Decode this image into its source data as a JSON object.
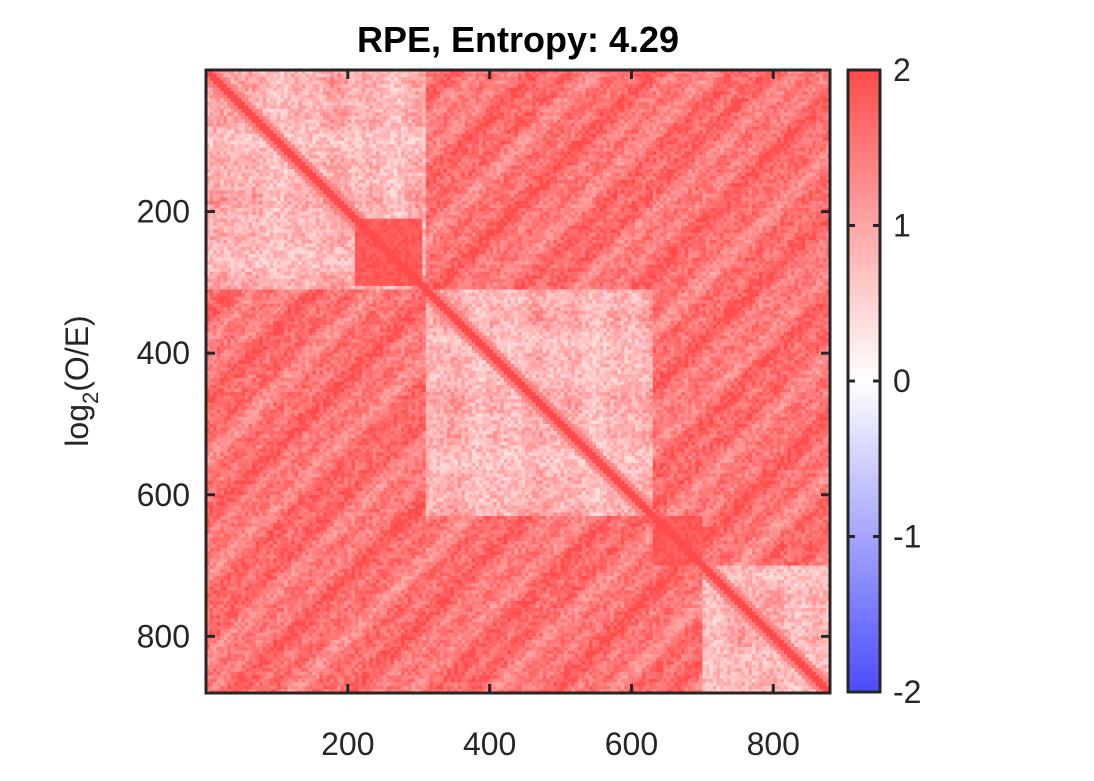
{
  "chart_data": {
    "type": "heatmap",
    "title": "RPE, Entropy: 4.29",
    "ylabel": "log",
    "ylabel_subscript": "2",
    "ylabel_suffix": "(O/E)",
    "xlim": [
      0,
      880
    ],
    "ylim": [
      0,
      880
    ],
    "x_ticks": [
      200,
      400,
      600,
      800
    ],
    "x_tick_labels": [
      "200",
      "400",
      "600",
      "800"
    ],
    "y_ticks": [
      200,
      400,
      600,
      800
    ],
    "y_tick_labels": [
      "200",
      "400",
      "600",
      "800"
    ],
    "colorbar": {
      "range": [
        -2,
        2
      ],
      "ticks": [
        2,
        1,
        0,
        -1,
        -2
      ],
      "tick_labels": [
        "2",
        "1",
        "0",
        "-1",
        "-2"
      ],
      "colors": {
        "low": "#4b4bff",
        "mid": "#ffffff",
        "high": "#ff4b4b"
      }
    },
    "block_boundaries": [
      310,
      630,
      700
    ],
    "colors": {
      "positive": "#ff4b4b",
      "neutral": "#ffffff",
      "negative": "#4b4bff",
      "axis": "#262626"
    }
  }
}
